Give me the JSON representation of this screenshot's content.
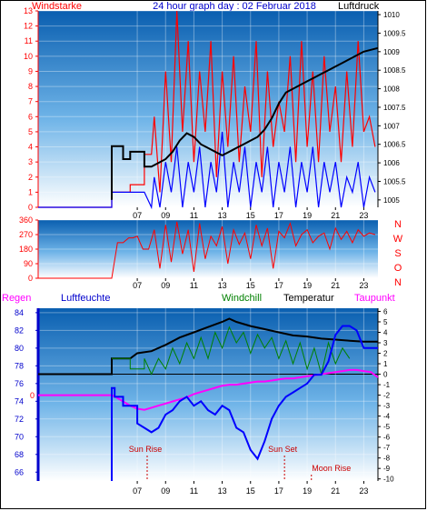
{
  "header": {
    "left_label": "Windstarke",
    "title": "24 hour graph day : 02 Februar 2018",
    "right_label": "Luftdruck"
  },
  "header3": {
    "regen": "Regen",
    "luftfeuchte": "Luftfeuchte",
    "windchill": "Windchill",
    "temperatur": "Temperatur",
    "taupunkt": "Taupunkt"
  },
  "colors": {
    "wind": "#ff0000",
    "gust_blue": "#0000ff",
    "pressure": "#000000",
    "temperature": "#000000",
    "windchill": "#008000",
    "dewpoint": "#ff00ff",
    "humidity": "#0000ff",
    "regen": "#ff0000",
    "sky_top": "#0a5fb0",
    "sky_bottom": "#ffffff"
  },
  "chart_data": [
    {
      "id": "wind-pressure",
      "type": "line",
      "x_ticks": [
        "07",
        "09",
        "11",
        "13",
        "15",
        "17",
        "19",
        "21",
        "23"
      ],
      "y_left_ticks": [
        "0",
        "1",
        "2",
        "3",
        "4",
        "5",
        "6",
        "7",
        "8",
        "9",
        "10",
        "11",
        "12",
        "13"
      ],
      "y_right_ticks": [
        "1005",
        "1005.5",
        "1006",
        "1006.5",
        "1007",
        "1007.5",
        "1008",
        "1008.5",
        "1009",
        "1009.5",
        "1010"
      ],
      "ylim_left": [
        0,
        13
      ],
      "ylim_right": [
        1004.8,
        1010.1
      ],
      "xlim": [
        0,
        24
      ],
      "series": [
        {
          "key": "wind",
          "axis": "left",
          "x": [
            0,
            5.2,
            5.2,
            6.5,
            6.5,
            7.5,
            7.5,
            8.0,
            8.2,
            8.6,
            9.0,
            9.4,
            9.8,
            10.2,
            10.6,
            11.0,
            11.4,
            11.8,
            12.2,
            12.6,
            13.0,
            13.4,
            13.8,
            14.2,
            14.6,
            15.0,
            15.4,
            15.8,
            16.2,
            16.6,
            17.0,
            17.4,
            17.8,
            18.2,
            18.6,
            19.0,
            19.4,
            19.8,
            20.2,
            20.6,
            21.0,
            21.4,
            21.8,
            22.2,
            22.6,
            23.0,
            23.4,
            23.8
          ],
          "y": [
            0,
            0,
            1,
            1,
            1.5,
            1.5,
            3.5,
            3.5,
            6,
            1,
            9,
            3,
            13,
            5,
            11,
            3,
            9,
            5,
            11,
            2,
            9,
            4,
            10,
            3,
            8,
            5,
            11,
            2,
            9,
            4,
            7,
            5,
            10,
            3,
            11,
            4,
            9,
            3,
            10,
            5,
            8,
            3,
            9,
            4,
            11,
            5,
            6,
            4
          ]
        },
        {
          "key": "gust_blue",
          "axis": "left",
          "x": [
            0,
            5.2,
            5.2,
            6.5,
            6.5,
            7.5,
            7.5,
            8.0,
            8.2,
            8.6,
            9.0,
            9.4,
            9.8,
            10.2,
            10.6,
            11.0,
            11.4,
            11.8,
            12.2,
            12.6,
            13.0,
            13.4,
            13.8,
            14.2,
            14.6,
            15.0,
            15.4,
            15.8,
            16.2,
            16.6,
            17.0,
            17.4,
            17.8,
            18.2,
            18.6,
            19.0,
            19.4,
            19.8,
            20.2,
            20.6,
            21.0,
            21.4,
            21.8,
            22.2,
            22.6,
            23.0,
            23.4,
            23.8
          ],
          "y": [
            0,
            0,
            1,
            1,
            1,
            1,
            1,
            0,
            2,
            0,
            3,
            1,
            4,
            0,
            3,
            1,
            4,
            0,
            3,
            1,
            5,
            0,
            3,
            1,
            4,
            0,
            3,
            1,
            4,
            0,
            3,
            1,
            4,
            0,
            3,
            1,
            4,
            0,
            3,
            1,
            3,
            0,
            2,
            1,
            3,
            0,
            2,
            1
          ]
        },
        {
          "key": "pressure",
          "axis": "right",
          "x": [
            5.2,
            5.2,
            6.0,
            6.0,
            6.5,
            6.5,
            7.5,
            7.5,
            8.0,
            8.5,
            9.0,
            9.5,
            10.0,
            10.5,
            11.0,
            11.5,
            12.0,
            12.5,
            13.0,
            13.5,
            14.0,
            14.5,
            15.0,
            15.5,
            16.0,
            16.5,
            17.0,
            17.5,
            18.0,
            18.5,
            19.0,
            19.5,
            20.0,
            20.5,
            21.0,
            21.5,
            22.0,
            22.5,
            23.0,
            23.5,
            24.0
          ],
          "y": [
            1005,
            1006.45,
            1006.45,
            1006.1,
            1006.1,
            1006.3,
            1006.3,
            1005.9,
            1005.9,
            1006.0,
            1006.1,
            1006.3,
            1006.6,
            1006.8,
            1006.7,
            1006.5,
            1006.4,
            1006.3,
            1006.2,
            1006.3,
            1006.4,
            1006.5,
            1006.6,
            1006.7,
            1006.9,
            1007.2,
            1007.6,
            1007.9,
            1008.0,
            1008.1,
            1008.2,
            1008.3,
            1008.4,
            1008.5,
            1008.6,
            1008.7,
            1008.8,
            1008.9,
            1009.0,
            1009.05,
            1009.1
          ]
        }
      ]
    },
    {
      "id": "wind-direction",
      "type": "line",
      "x_ticks": [
        "07",
        "09",
        "11",
        "13",
        "15",
        "17",
        "19",
        "21",
        "23"
      ],
      "y_left_ticks": [
        "0",
        "90",
        "180",
        "270",
        "360"
      ],
      "y_right_ticks": [
        "N",
        "W",
        "S",
        "O",
        "N"
      ],
      "ylim": [
        0,
        360
      ],
      "xlim": [
        0,
        24
      ],
      "series": [
        {
          "key": "wind",
          "x": [
            0,
            5.2,
            5.6,
            6.0,
            6.4,
            6.7,
            7.0,
            7.4,
            7.8,
            8.2,
            8.6,
            9.0,
            9.4,
            9.8,
            10.2,
            10.6,
            11.0,
            11.4,
            11.8,
            12.2,
            12.6,
            13.0,
            13.4,
            13.8,
            14.2,
            14.6,
            15.0,
            15.4,
            15.8,
            16.2,
            16.6,
            17.0,
            17.4,
            17.8,
            18.2,
            18.6,
            19.0,
            19.4,
            19.8,
            20.2,
            20.6,
            21.0,
            21.4,
            21.8,
            22.2,
            22.6,
            23.0,
            23.4,
            23.8
          ],
          "y": [
            0,
            0,
            220,
            220,
            250,
            250,
            260,
            180,
            180,
            300,
            60,
            330,
            100,
            350,
            150,
            300,
            40,
            340,
            120,
            260,
            200,
            320,
            90,
            300,
            210,
            280,
            120,
            330,
            200,
            310,
            60,
            290,
            250,
            340,
            200,
            270,
            300,
            220,
            260,
            280,
            180,
            310,
            240,
            290,
            220,
            300,
            260,
            280,
            270
          ]
        }
      ]
    },
    {
      "id": "temp-humidity",
      "type": "line",
      "x_ticks": [
        "07",
        "09",
        "11",
        "13",
        "15",
        "17",
        "19",
        "21",
        "23"
      ],
      "y_left_ticks": [
        "66",
        "68",
        "70",
        "72",
        "74",
        "76",
        "78",
        "80",
        "82",
        "84"
      ],
      "y_right_ticks": [
        "6",
        "5",
        "4",
        "3",
        "2",
        "1",
        "0",
        "-1",
        "-2",
        "-3",
        "-4",
        "-5",
        "-6",
        "-7",
        "-8",
        "-9",
        "-10"
      ],
      "ylim_left": [
        65,
        84.5
      ],
      "ylim_right": [
        -10.2,
        6.3
      ],
      "xlim": [
        0,
        24
      ],
      "events": [
        {
          "label": "Sun Rise",
          "x": 7.7
        },
        {
          "label": "Sun Set",
          "x": 17.4
        },
        {
          "label": "Moon Rise",
          "x": 19.3
        }
      ],
      "regen_label": "0",
      "series": [
        {
          "key": "temperature",
          "axis": "right",
          "x": [
            0,
            5.2,
            5.2,
            6.5,
            7.0,
            8.0,
            9.0,
            10.0,
            11.0,
            12.0,
            13.0,
            13.5,
            14.0,
            15.0,
            16.0,
            17.0,
            18.0,
            19.0,
            20.0,
            21.0,
            22.0,
            23.0,
            24.0
          ],
          "y": [
            0,
            0,
            1.5,
            1.5,
            2.0,
            2.2,
            2.8,
            3.5,
            4.0,
            4.5,
            5.0,
            5.3,
            5.0,
            4.6,
            4.3,
            4.0,
            3.7,
            3.6,
            3.4,
            3.3,
            3.2,
            3.1,
            3.1
          ]
        },
        {
          "key": "windchill",
          "axis": "right",
          "x": [
            5.2,
            6.5,
            6.5,
            7.5,
            7.5,
            8.0,
            8.5,
            9.0,
            9.5,
            10.0,
            10.5,
            11.0,
            11.5,
            12.0,
            12.5,
            13.0,
            13.5,
            14.0,
            14.5,
            15.0,
            15.5,
            16.0,
            16.5,
            17.0,
            17.5,
            18.0,
            18.5,
            19.0,
            19.5,
            20.0,
            20.5,
            21.0,
            21.5,
            22.0
          ],
          "y": [
            1.5,
            1.5,
            0.5,
            0.5,
            1.5,
            0,
            1.5,
            0.5,
            2.5,
            1.0,
            3.0,
            1.5,
            3.5,
            1.5,
            4.0,
            2.5,
            4.5,
            3.0,
            4.0,
            2.0,
            3.8,
            2.5,
            3.5,
            1.5,
            3.2,
            1.0,
            3.0,
            0.5,
            2.5,
            0.0,
            3.0,
            1.0,
            2.5,
            1.5
          ]
        },
        {
          "key": "dewpoint",
          "axis": "right",
          "x": [
            0,
            5.2,
            5.5,
            6.0,
            6.5,
            7.0,
            7.5,
            8.0,
            8.5,
            9.0,
            9.5,
            10.0,
            10.5,
            11.0,
            11.5,
            12.0,
            12.5,
            13.0,
            13.5,
            14.0,
            14.5,
            15.0,
            15.5,
            16.0,
            16.5,
            17.0,
            17.5,
            18.0,
            18.5,
            19.0,
            19.5,
            20.0,
            20.5,
            21.0,
            21.5,
            22.0,
            22.5,
            23.0,
            23.5,
            24.0
          ],
          "y": [
            -2,
            -2,
            -2.2,
            -2.6,
            -3.0,
            -3.3,
            -3.4,
            -3.2,
            -3.0,
            -2.8,
            -2.6,
            -2.4,
            -2.2,
            -1.9,
            -1.7,
            -1.5,
            -1.3,
            -1.1,
            -1.0,
            -1.0,
            -0.9,
            -0.8,
            -0.7,
            -0.7,
            -0.6,
            -0.5,
            -0.4,
            -0.4,
            -0.3,
            -0.2,
            -0.1,
            0.0,
            0.1,
            0.2,
            0.3,
            0.4,
            0.4,
            0.3,
            0.2,
            -0.3
          ]
        },
        {
          "key": "humidity",
          "axis": "left",
          "x": [
            5.2,
            5.2,
            5.4,
            5.4,
            6.0,
            6.0,
            7.0,
            7.0,
            7.5,
            8.0,
            8.5,
            9.0,
            9.5,
            10.0,
            10.5,
            11.0,
            11.5,
            12.0,
            12.5,
            13.0,
            13.5,
            14.0,
            14.5,
            15.0,
            15.5,
            16.0,
            16.5,
            17.0,
            17.5,
            18.0,
            18.5,
            19.0,
            19.5,
            20.0,
            20.5,
            21.0,
            21.5,
            22.0,
            22.5,
            23.0,
            23.5,
            24.0
          ],
          "y": [
            65,
            75.5,
            75.5,
            74.5,
            74.5,
            73.5,
            73.5,
            71.5,
            71.0,
            70.5,
            71.0,
            72.5,
            73.0,
            74.0,
            74.5,
            73.5,
            74.0,
            73.0,
            72.5,
            73.5,
            73.0,
            71.0,
            70.5,
            68.5,
            67.5,
            69.5,
            72.0,
            73.5,
            74.5,
            75.0,
            75.5,
            76.0,
            77.0,
            77.0,
            78.5,
            81.5,
            82.5,
            82.5,
            82.0,
            80.0,
            80.0,
            80.0
          ]
        }
      ]
    }
  ]
}
